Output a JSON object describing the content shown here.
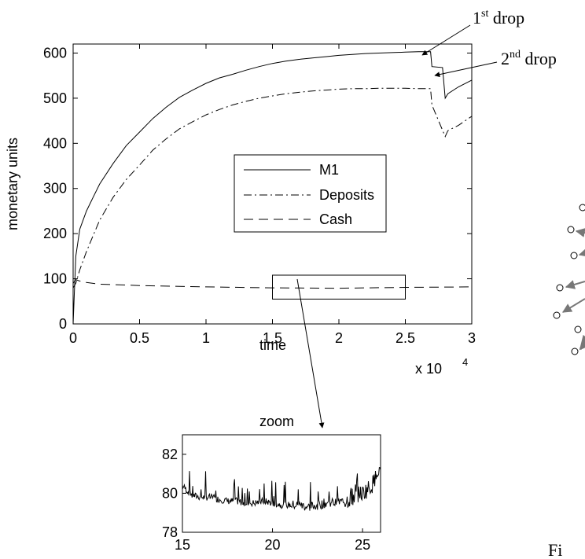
{
  "chart_data": [
    {
      "type": "line",
      "ylabel": "monetary units",
      "xlabel": "time",
      "x_multiplier": "x 10",
      "x_multiplier_exp": "4",
      "xlim": [
        0,
        3
      ],
      "ylim": [
        0,
        620
      ],
      "x_ticks": [
        "0",
        "0.5",
        "1",
        "1.5",
        "2",
        "2.5",
        "3"
      ],
      "x_tick_values": [
        0,
        0.5,
        1,
        1.5,
        2,
        2.5,
        3
      ],
      "y_ticks": [
        "0",
        "100",
        "200",
        "300",
        "400",
        "500",
        "600"
      ],
      "y_tick_values": [
        0,
        100,
        200,
        300,
        400,
        500,
        600
      ],
      "grid": false,
      "legend_placement": "center",
      "series": [
        {
          "name": "M1",
          "style": "solid",
          "x": [
            0,
            0.02,
            0.05,
            0.1,
            0.15,
            0.2,
            0.3,
            0.4,
            0.5,
            0.6,
            0.7,
            0.8,
            0.9,
            1.0,
            1.1,
            1.2,
            1.3,
            1.4,
            1.5,
            1.6,
            1.7,
            1.8,
            1.9,
            2.0,
            2.1,
            2.2,
            2.3,
            2.4,
            2.5,
            2.6,
            2.69,
            2.7,
            2.78,
            2.8,
            2.82,
            2.9,
            3.0
          ],
          "y": [
            0,
            150,
            210,
            250,
            280,
            310,
            355,
            395,
            425,
            455,
            480,
            502,
            518,
            533,
            545,
            553,
            562,
            570,
            577,
            582,
            586,
            589,
            592,
            595,
            597,
            599,
            600,
            601,
            602,
            603,
            603,
            570,
            568,
            500,
            510,
            525,
            540
          ]
        },
        {
          "name": "Deposits",
          "style": "dashdot",
          "x": [
            0,
            0.02,
            0.05,
            0.1,
            0.15,
            0.2,
            0.3,
            0.4,
            0.5,
            0.6,
            0.7,
            0.8,
            0.9,
            1.0,
            1.1,
            1.2,
            1.3,
            1.4,
            1.5,
            1.6,
            1.7,
            1.8,
            1.9,
            2.0,
            2.1,
            2.2,
            2.3,
            2.4,
            2.5,
            2.6,
            2.69,
            2.7,
            2.8,
            2.82,
            2.9,
            3.0
          ],
          "y": [
            80,
            90,
            120,
            160,
            195,
            230,
            280,
            320,
            352,
            385,
            410,
            432,
            448,
            463,
            475,
            485,
            493,
            500,
            505,
            510,
            513,
            516,
            518,
            520,
            521,
            521,
            522,
            522,
            522,
            521,
            521,
            485,
            415,
            428,
            440,
            460
          ]
        },
        {
          "name": "Cash",
          "style": "dashed",
          "x": [
            0,
            0.02,
            0.05,
            0.1,
            0.2,
            0.3,
            0.5,
            0.8,
            1.0,
            1.5,
            2.0,
            2.5,
            3.0
          ],
          "y": [
            90,
            98,
            95,
            92,
            88,
            87,
            85,
            83,
            82,
            80,
            79,
            81,
            82
          ]
        }
      ],
      "annotations": [
        {
          "text": "1",
          "sup": "st",
          "suffix": " drop"
        },
        {
          "text": "2",
          "sup": "nd",
          "suffix": " drop"
        }
      ],
      "zoom_box": {
        "x0": 1.5,
        "x1": 2.5,
        "y0": 55,
        "y1": 108
      }
    },
    {
      "type": "line",
      "title": "zoom",
      "xlim": [
        15,
        26
      ],
      "ylim": [
        78,
        83
      ],
      "x_ticks": [
        "15",
        "20",
        "25"
      ],
      "x_tick_values": [
        15,
        20,
        25
      ],
      "y_ticks": [
        "78",
        "80",
        "82"
      ],
      "y_tick_values": [
        78,
        80,
        82
      ],
      "series": [
        {
          "style": "solid",
          "x": [
            15,
            15.5,
            16,
            16.5,
            17,
            17.5,
            18,
            18.5,
            19,
            19.5,
            20,
            20.5,
            21,
            21.5,
            22,
            22.5,
            23,
            23.5,
            24,
            24.5,
            25,
            25.5,
            26
          ],
          "y": [
            80.4,
            79.9,
            79.8,
            79.8,
            79.7,
            79.6,
            79.6,
            79.5,
            79.5,
            79.6,
            79.5,
            79.4,
            79.4,
            79.4,
            79.3,
            79.4,
            79.5,
            79.5,
            79.6,
            79.8,
            80.0,
            80.4,
            81.2
          ]
        }
      ]
    }
  ],
  "side_fragment": {
    "caption_fragment": "Fi"
  }
}
